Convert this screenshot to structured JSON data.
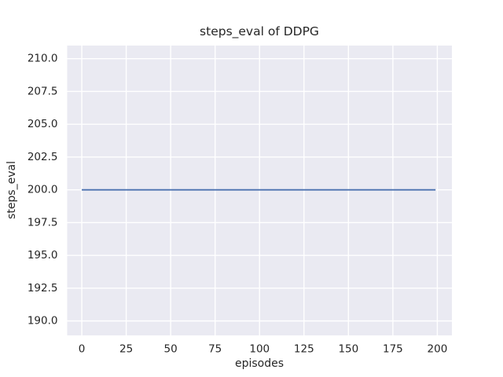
{
  "chart_data": {
    "type": "line",
    "title": "steps_eval of DDPG",
    "xlabel": "episodes",
    "ylabel": "steps_eval",
    "series": [
      {
        "name": "steps_eval",
        "color": "#4c72b0",
        "points": [
          [
            0,
            200.0
          ],
          [
            199,
            200.0
          ]
        ]
      }
    ],
    "xticks": [
      0,
      25,
      50,
      75,
      100,
      125,
      150,
      175,
      200
    ],
    "xtick_labels": [
      "0",
      "25",
      "50",
      "75",
      "100",
      "125",
      "150",
      "175",
      "200"
    ],
    "yticks": [
      190.0,
      192.5,
      195.0,
      197.5,
      200.0,
      202.5,
      205.0,
      207.5,
      210.0
    ],
    "ytick_labels": [
      "190.0",
      "192.5",
      "195.0",
      "197.5",
      "200.0",
      "202.5",
      "205.0",
      "207.5",
      "210.0"
    ],
    "xlim": [
      -8.2,
      208.2
    ],
    "ylim": [
      188.9,
      211.0
    ],
    "grid": true,
    "legend": false,
    "styles": {
      "figure_bg": "#ffffff",
      "plot_bg": "#eaeaf2",
      "grid_color": "#ffffff",
      "text_color": "#262626"
    }
  }
}
